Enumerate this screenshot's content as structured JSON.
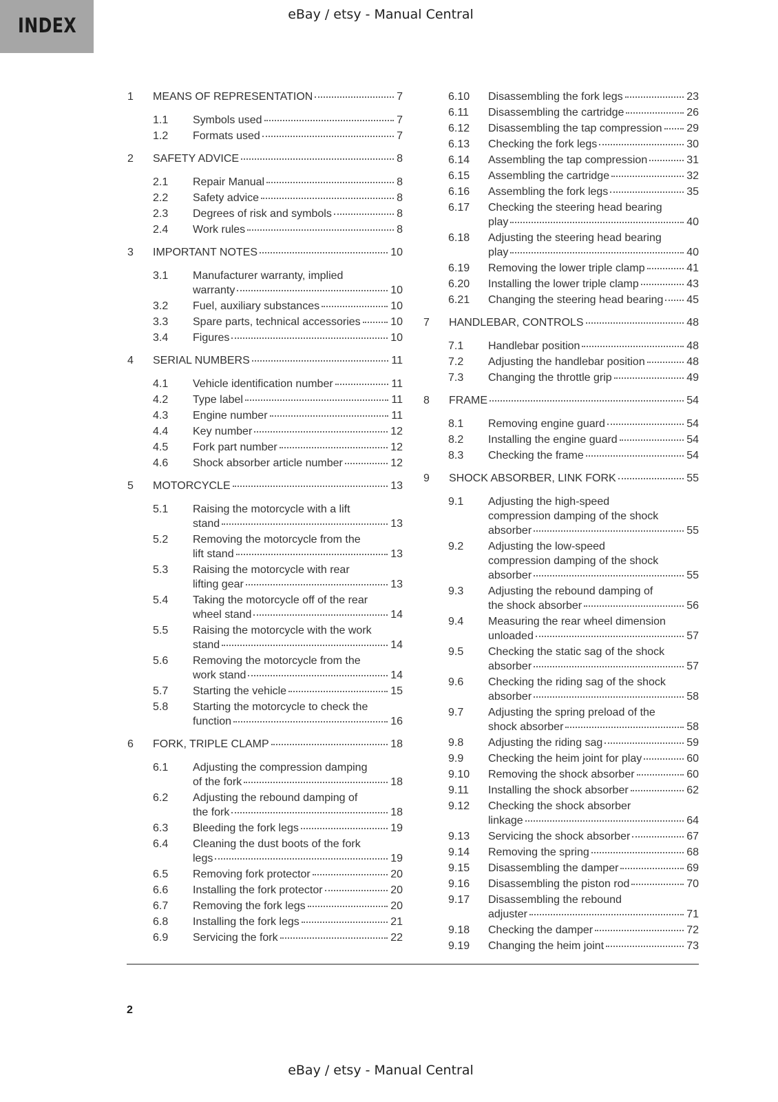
{
  "header": {
    "index_label": "INDEX",
    "watermark": "eBay / etsy - Manual Central"
  },
  "footer": {
    "page_number": "2",
    "watermark": "eBay / etsy - Manual Central"
  },
  "toc": {
    "left": [
      {
        "type": "chapter",
        "num": "1",
        "lines": [
          "MEANS OF REPRESENTATION"
        ],
        "page": "7"
      },
      {
        "type": "section",
        "num": "1.1",
        "lines": [
          "Symbols used"
        ],
        "page": "7"
      },
      {
        "type": "section",
        "num": "1.2",
        "lines": [
          "Formats used"
        ],
        "page": "7"
      },
      {
        "type": "chapter",
        "num": "2",
        "lines": [
          "SAFETY ADVICE"
        ],
        "page": "8"
      },
      {
        "type": "section",
        "num": "2.1",
        "lines": [
          "Repair Manual"
        ],
        "page": "8"
      },
      {
        "type": "section",
        "num": "2.2",
        "lines": [
          "Safety advice"
        ],
        "page": "8"
      },
      {
        "type": "section",
        "num": "2.3",
        "lines": [
          "Degrees of risk and symbols"
        ],
        "page": "8"
      },
      {
        "type": "section",
        "num": "2.4",
        "lines": [
          "Work rules"
        ],
        "page": "8"
      },
      {
        "type": "chapter",
        "num": "3",
        "lines": [
          "IMPORTANT NOTES"
        ],
        "page": "10"
      },
      {
        "type": "section",
        "num": "3.1",
        "lines": [
          "Manufacturer warranty, implied",
          "warranty"
        ],
        "page": "10"
      },
      {
        "type": "section",
        "num": "3.2",
        "lines": [
          "Fuel, auxiliary substances"
        ],
        "page": "10"
      },
      {
        "type": "section",
        "num": "3.3",
        "lines": [
          "Spare parts, technical accessories"
        ],
        "page": "10"
      },
      {
        "type": "section",
        "num": "3.4",
        "lines": [
          "Figures"
        ],
        "page": "10"
      },
      {
        "type": "chapter",
        "num": "4",
        "lines": [
          "SERIAL NUMBERS"
        ],
        "page": "11"
      },
      {
        "type": "section",
        "num": "4.1",
        "lines": [
          "Vehicle identification number"
        ],
        "page": "11"
      },
      {
        "type": "section",
        "num": "4.2",
        "lines": [
          "Type label"
        ],
        "page": "11"
      },
      {
        "type": "section",
        "num": "4.3",
        "lines": [
          "Engine number"
        ],
        "page": "11"
      },
      {
        "type": "section",
        "num": "4.4",
        "lines": [
          "Key number"
        ],
        "page": "12"
      },
      {
        "type": "section",
        "num": "4.5",
        "lines": [
          "Fork part number"
        ],
        "page": "12"
      },
      {
        "type": "section",
        "num": "4.6",
        "lines": [
          "Shock absorber article number"
        ],
        "page": "12"
      },
      {
        "type": "chapter",
        "num": "5",
        "lines": [
          "MOTORCYCLE"
        ],
        "page": "13"
      },
      {
        "type": "section",
        "num": "5.1",
        "lines": [
          "Raising the motorcycle with a lift",
          "stand"
        ],
        "page": "13"
      },
      {
        "type": "section",
        "num": "5.2",
        "lines": [
          "Removing the motorcycle from the",
          "lift stand"
        ],
        "page": "13"
      },
      {
        "type": "section",
        "num": "5.3",
        "lines": [
          "Raising the motorcycle with rear",
          "lifting gear"
        ],
        "page": "13"
      },
      {
        "type": "section",
        "num": "5.4",
        "lines": [
          "Taking the motorcycle off of the rear",
          "wheel stand"
        ],
        "page": "14"
      },
      {
        "type": "section",
        "num": "5.5",
        "lines": [
          "Raising the motorcycle with the work",
          "stand"
        ],
        "page": "14"
      },
      {
        "type": "section",
        "num": "5.6",
        "lines": [
          "Removing the motorcycle from the",
          "work stand"
        ],
        "page": "14"
      },
      {
        "type": "section",
        "num": "5.7",
        "lines": [
          "Starting the vehicle"
        ],
        "page": "15"
      },
      {
        "type": "section",
        "num": "5.8",
        "lines": [
          "Starting the motorcycle to check the",
          "function"
        ],
        "page": "16"
      },
      {
        "type": "chapter",
        "num": "6",
        "lines": [
          "FORK, TRIPLE CLAMP"
        ],
        "page": "18"
      },
      {
        "type": "section",
        "num": "6.1",
        "lines": [
          "Adjusting the compression damping",
          "of the fork"
        ],
        "page": "18"
      },
      {
        "type": "section",
        "num": "6.2",
        "lines": [
          "Adjusting the rebound damping of",
          "the fork"
        ],
        "page": "18"
      },
      {
        "type": "section",
        "num": "6.3",
        "lines": [
          "Bleeding the fork legs"
        ],
        "page": "19"
      },
      {
        "type": "section",
        "num": "6.4",
        "lines": [
          "Cleaning the dust boots of the fork",
          "legs"
        ],
        "page": "19"
      },
      {
        "type": "section",
        "num": "6.5",
        "lines": [
          "Removing fork protector"
        ],
        "page": "20"
      },
      {
        "type": "section",
        "num": "6.6",
        "lines": [
          "Installing the fork protector"
        ],
        "page": "20"
      },
      {
        "type": "section",
        "num": "6.7",
        "lines": [
          "Removing the fork legs"
        ],
        "page": "20"
      },
      {
        "type": "section",
        "num": "6.8",
        "lines": [
          "Installing the fork legs"
        ],
        "page": "21"
      },
      {
        "type": "section",
        "num": "6.9",
        "lines": [
          "Servicing the fork"
        ],
        "page": "22"
      }
    ],
    "right": [
      {
        "type": "section",
        "num": "6.10",
        "lines": [
          "Disassembling the fork legs"
        ],
        "page": "23"
      },
      {
        "type": "section",
        "num": "6.11",
        "lines": [
          "Disassembling the cartridge"
        ],
        "page": "26"
      },
      {
        "type": "section",
        "num": "6.12",
        "lines": [
          "Disassembling the tap compression"
        ],
        "page": "29"
      },
      {
        "type": "section",
        "num": "6.13",
        "lines": [
          "Checking the fork legs"
        ],
        "page": "30"
      },
      {
        "type": "section",
        "num": "6.14",
        "lines": [
          "Assembling the tap compression"
        ],
        "page": "31"
      },
      {
        "type": "section",
        "num": "6.15",
        "lines": [
          "Assembling the cartridge"
        ],
        "page": "32"
      },
      {
        "type": "section",
        "num": "6.16",
        "lines": [
          "Assembling the fork legs"
        ],
        "page": "35"
      },
      {
        "type": "section",
        "num": "6.17",
        "lines": [
          "Checking the steering head bearing",
          "play"
        ],
        "page": "40"
      },
      {
        "type": "section",
        "num": "6.18",
        "lines": [
          "Adjusting the steering head bearing",
          "play"
        ],
        "page": "40"
      },
      {
        "type": "section",
        "num": "6.19",
        "lines": [
          "Removing the lower triple clamp"
        ],
        "page": "41"
      },
      {
        "type": "section",
        "num": "6.20",
        "lines": [
          "Installing the lower triple clamp"
        ],
        "page": "43"
      },
      {
        "type": "section",
        "num": "6.21",
        "lines": [
          "Changing the steering head bearing"
        ],
        "page": "45"
      },
      {
        "type": "chapter",
        "num": "7",
        "lines": [
          "HANDLEBAR, CONTROLS"
        ],
        "page": "48"
      },
      {
        "type": "section",
        "num": "7.1",
        "lines": [
          "Handlebar position"
        ],
        "page": "48"
      },
      {
        "type": "section",
        "num": "7.2",
        "lines": [
          "Adjusting the handlebar position"
        ],
        "page": "48"
      },
      {
        "type": "section",
        "num": "7.3",
        "lines": [
          "Changing the throttle grip"
        ],
        "page": "49"
      },
      {
        "type": "chapter",
        "num": "8",
        "lines": [
          "FRAME"
        ],
        "page": "54"
      },
      {
        "type": "section",
        "num": "8.1",
        "lines": [
          "Removing engine guard"
        ],
        "page": "54"
      },
      {
        "type": "section",
        "num": "8.2",
        "lines": [
          "Installing the engine guard"
        ],
        "page": "54"
      },
      {
        "type": "section",
        "num": "8.3",
        "lines": [
          "Checking the frame"
        ],
        "page": "54"
      },
      {
        "type": "chapter",
        "num": "9",
        "lines": [
          "SHOCK ABSORBER, LINK FORK"
        ],
        "page": "55"
      },
      {
        "type": "section",
        "num": "9.1",
        "lines": [
          "Adjusting the high-speed",
          "compression damping of the shock",
          "absorber"
        ],
        "page": "55"
      },
      {
        "type": "section",
        "num": "9.2",
        "lines": [
          "Adjusting the low-speed",
          "compression damping of the shock",
          "absorber"
        ],
        "page": "55"
      },
      {
        "type": "section",
        "num": "9.3",
        "lines": [
          "Adjusting the rebound damping of",
          "the shock absorber"
        ],
        "page": "56"
      },
      {
        "type": "section",
        "num": "9.4",
        "lines": [
          "Measuring the rear wheel dimension",
          "unloaded"
        ],
        "page": "57"
      },
      {
        "type": "section",
        "num": "9.5",
        "lines": [
          "Checking the static sag of the shock",
          "absorber"
        ],
        "page": "57"
      },
      {
        "type": "section",
        "num": "9.6",
        "lines": [
          "Checking the riding sag of the shock",
          "absorber"
        ],
        "page": "58"
      },
      {
        "type": "section",
        "num": "9.7",
        "lines": [
          "Adjusting the spring preload of the",
          "shock absorber"
        ],
        "page": "58"
      },
      {
        "type": "section",
        "num": "9.8",
        "lines": [
          "Adjusting the riding sag"
        ],
        "page": "59"
      },
      {
        "type": "section",
        "num": "9.9",
        "lines": [
          "Checking the heim joint for play"
        ],
        "page": "60"
      },
      {
        "type": "section",
        "num": "9.10",
        "lines": [
          "Removing the shock absorber"
        ],
        "page": "60"
      },
      {
        "type": "section",
        "num": "9.11",
        "lines": [
          "Installing the shock absorber"
        ],
        "page": "62"
      },
      {
        "type": "section",
        "num": "9.12",
        "lines": [
          "Checking the shock absorber",
          "linkage"
        ],
        "page": "64"
      },
      {
        "type": "section",
        "num": "9.13",
        "lines": [
          "Servicing the shock absorber"
        ],
        "page": "67"
      },
      {
        "type": "section",
        "num": "9.14",
        "lines": [
          "Removing the spring"
        ],
        "page": "68"
      },
      {
        "type": "section",
        "num": "9.15",
        "lines": [
          "Disassembling the damper"
        ],
        "page": "69"
      },
      {
        "type": "section",
        "num": "9.16",
        "lines": [
          "Disassembling the piston rod"
        ],
        "page": "70"
      },
      {
        "type": "section",
        "num": "9.17",
        "lines": [
          "Disassembling the rebound",
          "adjuster"
        ],
        "page": "71"
      },
      {
        "type": "section",
        "num": "9.18",
        "lines": [
          "Checking the damper"
        ],
        "page": "72"
      },
      {
        "type": "section",
        "num": "9.19",
        "lines": [
          "Changing the heim joint"
        ],
        "page": "73"
      }
    ]
  }
}
